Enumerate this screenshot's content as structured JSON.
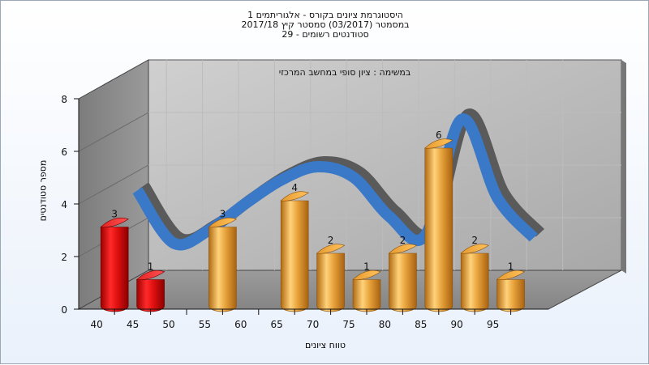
{
  "titles": [
    "היסטוגרמת ציונים בקורס - אלגוריתמים 1",
    "במסמטר  (03/2017)  סמסטר קיץ 2017/18",
    "סטודנטים רשומים - 29"
  ],
  "chart_data": {
    "type": "bar",
    "subtitle": "במשימה : ציון סופי במחשב המרכזי",
    "xlabel": "טווח ציונים",
    "ylabel": "מספר סטודנטים",
    "x_ticks": [
      "40",
      "45",
      "50",
      "55",
      "60",
      "65",
      "70",
      "75",
      "80",
      "85",
      "90",
      "95"
    ],
    "y_ticks": [
      "0",
      "2",
      "4",
      "6",
      "8"
    ],
    "ylim": [
      0,
      8
    ],
    "bars": [
      {
        "category": "40",
        "value": 3,
        "label": "3",
        "color": "#e01010"
      },
      {
        "category": "45",
        "value": 1,
        "label": "1",
        "color": "#e01010"
      },
      {
        "category": "55",
        "value": 3,
        "label": "3",
        "color": "#e8a33c"
      },
      {
        "category": "65",
        "value": 4,
        "label": "4",
        "color": "#e8a33c"
      },
      {
        "category": "70",
        "value": 2,
        "label": "2",
        "color": "#e8a33c"
      },
      {
        "category": "75",
        "value": 1,
        "label": "1",
        "color": "#e8a33c"
      },
      {
        "category": "80",
        "value": 2,
        "label": "2",
        "color": "#e8a33c"
      },
      {
        "category": "85",
        "value": 6,
        "label": "6",
        "color": "#e8a33c"
      },
      {
        "category": "90",
        "value": 2,
        "label": "2",
        "color": "#e8a33c"
      },
      {
        "category": "95",
        "value": 1,
        "label": "1",
        "color": "#e8a33c"
      }
    ],
    "trend": {
      "x": [
        42.5,
        47.5,
        52.5,
        57.5,
        62.5,
        67.5,
        72.5,
        77.5,
        82.5,
        87.5,
        92.5,
        97.5
      ],
      "y": [
        3.9,
        1.9,
        2.4,
        3.4,
        4.3,
        4.8,
        4.4,
        2.9,
        2.2,
        6.6,
        3.6,
        2.1
      ],
      "color": "#3a78c8"
    },
    "grid": true,
    "legend": "none"
  }
}
